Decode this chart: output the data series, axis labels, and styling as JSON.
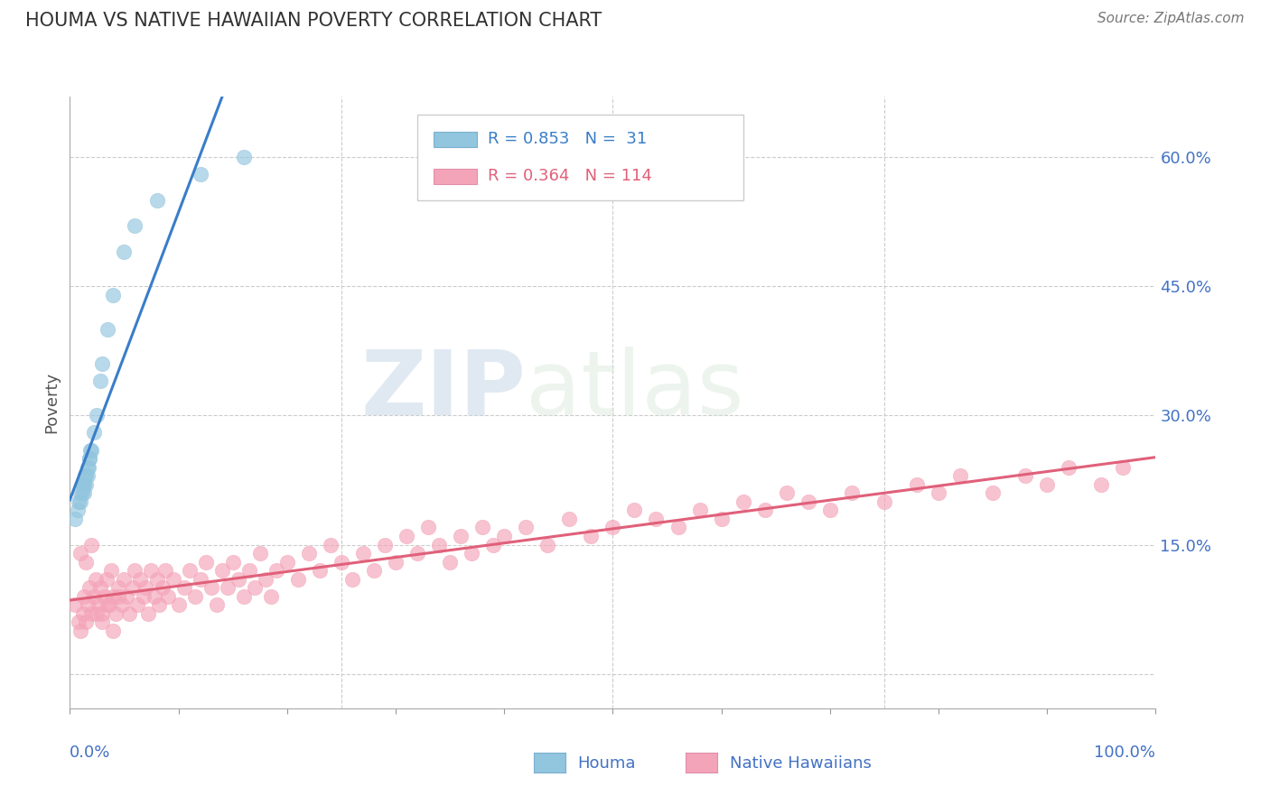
{
  "title": "HOUMA VS NATIVE HAWAIIAN POVERTY CORRELATION CHART",
  "source_text": "Source: ZipAtlas.com",
  "ylabel": "Poverty",
  "yticks": [
    0.0,
    0.15,
    0.3,
    0.45,
    0.6
  ],
  "ytick_labels": [
    "",
    "15.0%",
    "30.0%",
    "45.0%",
    "60.0%"
  ],
  "xlim": [
    0.0,
    1.0
  ],
  "ylim": [
    -0.04,
    0.67
  ],
  "houma_R": 0.853,
  "houma_N": 31,
  "nh_R": 0.364,
  "nh_N": 114,
  "houma_color": "#92c5de",
  "nh_color": "#f4a4b8",
  "houma_line_color": "#3a7dc9",
  "nh_line_color": "#e0607a",
  "watermark_zip": "ZIP",
  "watermark_atlas": "atlas",
  "background_color": "#ffffff",
  "grid_color": "#cccccc",
  "title_color": "#333333",
  "axis_label_color": "#4472c4",
  "legend_R_color": "#4472c4",
  "houma_x": [
    0.005,
    0.007,
    0.008,
    0.01,
    0.01,
    0.011,
    0.012,
    0.012,
    0.013,
    0.013,
    0.014,
    0.015,
    0.015,
    0.016,
    0.016,
    0.017,
    0.018,
    0.018,
    0.019,
    0.02,
    0.022,
    0.025,
    0.028,
    0.03,
    0.035,
    0.04,
    0.05,
    0.06,
    0.08,
    0.12,
    0.16
  ],
  "houma_y": [
    0.18,
    0.19,
    0.2,
    0.2,
    0.21,
    0.21,
    0.22,
    0.22,
    0.21,
    0.22,
    0.23,
    0.22,
    0.23,
    0.24,
    0.23,
    0.24,
    0.25,
    0.25,
    0.26,
    0.26,
    0.28,
    0.3,
    0.34,
    0.36,
    0.4,
    0.44,
    0.49,
    0.52,
    0.55,
    0.58,
    0.6
  ],
  "nh_x": [
    0.005,
    0.008,
    0.01,
    0.012,
    0.013,
    0.015,
    0.016,
    0.018,
    0.02,
    0.022,
    0.024,
    0.026,
    0.028,
    0.03,
    0.032,
    0.034,
    0.036,
    0.038,
    0.04,
    0.042,
    0.045,
    0.048,
    0.05,
    0.052,
    0.055,
    0.058,
    0.06,
    0.062,
    0.065,
    0.068,
    0.07,
    0.072,
    0.075,
    0.078,
    0.08,
    0.082,
    0.085,
    0.088,
    0.09,
    0.095,
    0.1,
    0.105,
    0.11,
    0.115,
    0.12,
    0.125,
    0.13,
    0.135,
    0.14,
    0.145,
    0.15,
    0.155,
    0.16,
    0.165,
    0.17,
    0.175,
    0.18,
    0.185,
    0.19,
    0.2,
    0.21,
    0.22,
    0.23,
    0.24,
    0.25,
    0.26,
    0.27,
    0.28,
    0.29,
    0.3,
    0.31,
    0.32,
    0.33,
    0.34,
    0.35,
    0.36,
    0.37,
    0.38,
    0.39,
    0.4,
    0.42,
    0.44,
    0.46,
    0.48,
    0.5,
    0.52,
    0.54,
    0.56,
    0.58,
    0.6,
    0.62,
    0.64,
    0.66,
    0.68,
    0.7,
    0.72,
    0.75,
    0.78,
    0.8,
    0.82,
    0.85,
    0.88,
    0.9,
    0.92,
    0.95,
    0.97,
    0.01,
    0.015,
    0.02,
    0.025,
    0.03,
    0.035,
    0.04,
    0.045
  ],
  "nh_y": [
    0.08,
    0.06,
    0.05,
    0.07,
    0.09,
    0.06,
    0.08,
    0.1,
    0.07,
    0.09,
    0.11,
    0.08,
    0.1,
    0.07,
    0.09,
    0.11,
    0.08,
    0.12,
    0.09,
    0.07,
    0.1,
    0.08,
    0.11,
    0.09,
    0.07,
    0.1,
    0.12,
    0.08,
    0.11,
    0.09,
    0.1,
    0.07,
    0.12,
    0.09,
    0.11,
    0.08,
    0.1,
    0.12,
    0.09,
    0.11,
    0.08,
    0.1,
    0.12,
    0.09,
    0.11,
    0.13,
    0.1,
    0.08,
    0.12,
    0.1,
    0.13,
    0.11,
    0.09,
    0.12,
    0.1,
    0.14,
    0.11,
    0.09,
    0.12,
    0.13,
    0.11,
    0.14,
    0.12,
    0.15,
    0.13,
    0.11,
    0.14,
    0.12,
    0.15,
    0.13,
    0.16,
    0.14,
    0.17,
    0.15,
    0.13,
    0.16,
    0.14,
    0.17,
    0.15,
    0.16,
    0.17,
    0.15,
    0.18,
    0.16,
    0.17,
    0.19,
    0.18,
    0.17,
    0.19,
    0.18,
    0.2,
    0.19,
    0.21,
    0.2,
    0.19,
    0.21,
    0.2,
    0.22,
    0.21,
    0.23,
    0.21,
    0.23,
    0.22,
    0.24,
    0.22,
    0.24,
    0.14,
    0.13,
    0.15,
    0.07,
    0.06,
    0.08,
    0.05,
    0.09
  ]
}
